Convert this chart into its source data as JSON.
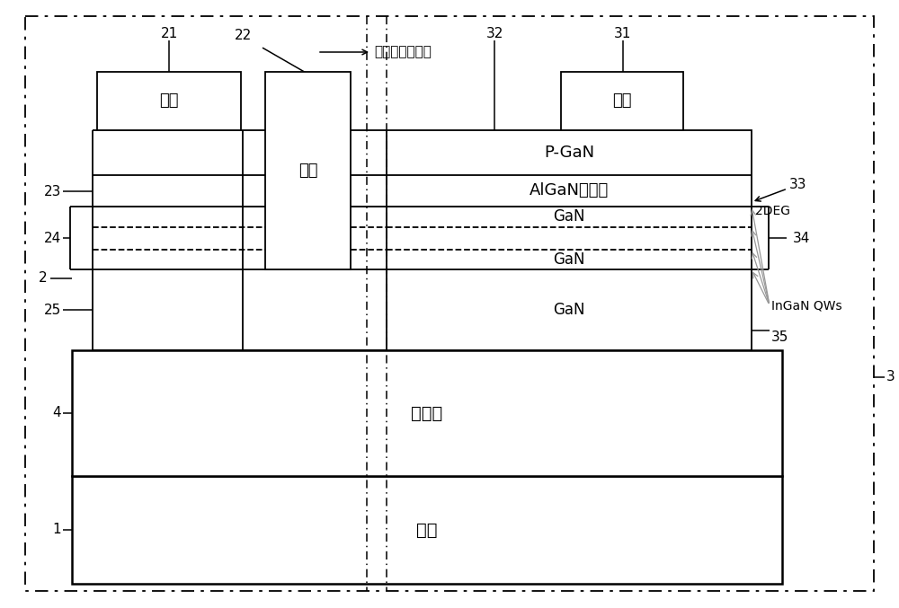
{
  "bg_color": "#ffffff",
  "line_color": "#000000",
  "gray_color": "#999999",
  "substrate_label": "基板",
  "buffer_label": "缓冲层",
  "source_label": "源极",
  "gate_label": "栅极",
  "drain_label": "漏极",
  "pgaN_label": "P-GaN",
  "algan_label": "AlGaN势垒层",
  "gan1_label": "GaN",
  "gan2_label": "GaN",
  "gan3_label": "GaN",
  "deg_label": "2DEG",
  "ingaN_label": "InGaN QWs",
  "cross_section_label": "在此处做横切面",
  "label_1": "1",
  "label_2": "2",
  "label_3": "3",
  "label_4": "4",
  "label_21": "21",
  "label_22": "22",
  "label_23": "23",
  "label_24": "24",
  "label_25": "25",
  "label_31": "31",
  "label_32": "32",
  "label_33": "33",
  "label_34": "34",
  "label_35": "35"
}
